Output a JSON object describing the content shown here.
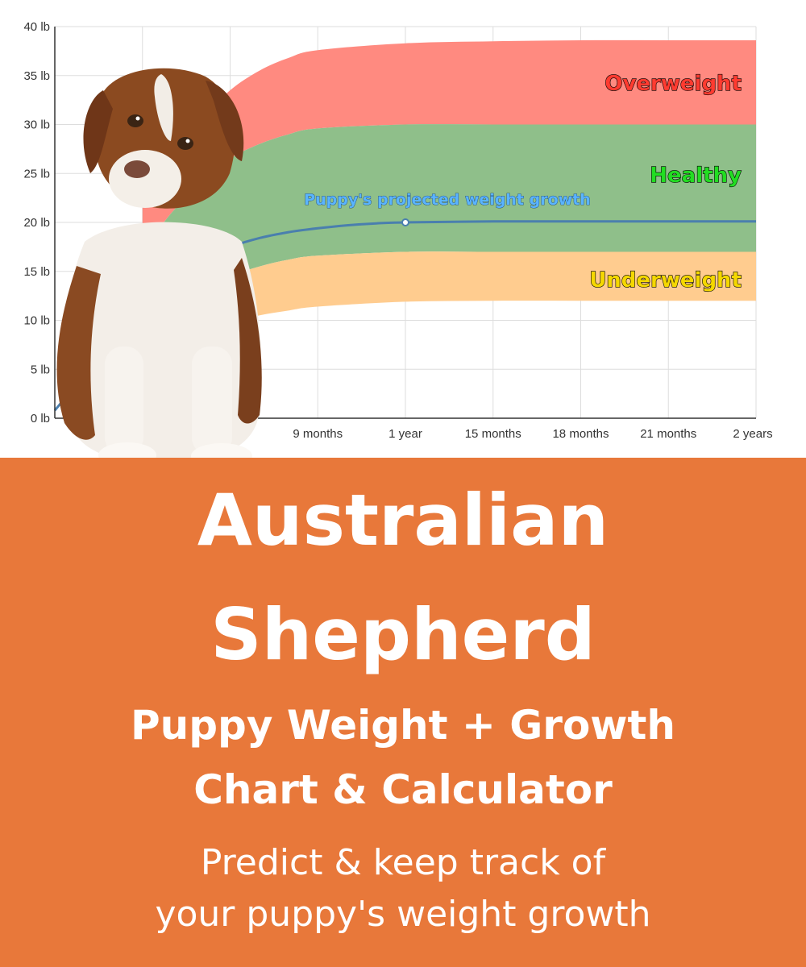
{
  "chart_data": {
    "type": "area",
    "y_unit": "lb",
    "ylim": [
      0,
      40
    ],
    "y_ticks": [
      "0 lb",
      "5 lb",
      "10 lb",
      "15 lb",
      "20 lb",
      "25 lb",
      "30 lb",
      "35 lb",
      "40 lb"
    ],
    "y_tick_values": [
      0,
      5,
      10,
      15,
      20,
      25,
      30,
      35,
      40
    ],
    "xlim_months": [
      0,
      24
    ],
    "x_tick_labels": [
      "9 months",
      "1 year",
      "15 months",
      "18 months",
      "21 months",
      "2 years"
    ],
    "x_tick_values_months": [
      9,
      12,
      15,
      18,
      21,
      24
    ],
    "grid": true,
    "bands": [
      {
        "name": "Overweight",
        "color": "#ff8a80",
        "label_color": "#ff3b30",
        "x_months": [
          3,
          4,
          5,
          6,
          7,
          8,
          9,
          12,
          15,
          18,
          21,
          24
        ],
        "lower": [
          17.0,
          21.0,
          24.0,
          26.5,
          28.0,
          29.0,
          29.6,
          30.0,
          30.0,
          30.0,
          30.0,
          30.0
        ],
        "upper": [
          22.0,
          27.0,
          30.5,
          33.5,
          35.5,
          36.8,
          37.6,
          38.3,
          38.5,
          38.6,
          38.6,
          38.6
        ]
      },
      {
        "name": "Healthy",
        "color": "#8fbf8a",
        "label_color": "#22dd22",
        "x_months": [
          3,
          4,
          5,
          6,
          7,
          8,
          9,
          12,
          15,
          18,
          21,
          24
        ],
        "lower": [
          9.0,
          11.5,
          13.0,
          14.5,
          15.5,
          16.2,
          16.6,
          17.0,
          17.0,
          17.0,
          17.0,
          17.0
        ],
        "upper": [
          17.0,
          21.0,
          24.0,
          26.5,
          28.0,
          29.0,
          29.6,
          30.0,
          30.0,
          30.0,
          30.0,
          30.0
        ]
      },
      {
        "name": "Underweight",
        "color": "#ffcc8f",
        "label_color": "#f5d800",
        "x_months": [
          3,
          4,
          5,
          6,
          7,
          8,
          9,
          12,
          15,
          18,
          21,
          24
        ],
        "lower": [
          6.0,
          7.5,
          8.8,
          9.8,
          10.5,
          11.0,
          11.4,
          11.9,
          12.0,
          12.0,
          12.0,
          12.0
        ],
        "upper": [
          9.0,
          11.5,
          13.0,
          14.5,
          15.5,
          16.2,
          16.6,
          17.0,
          17.0,
          17.0,
          17.0,
          17.0
        ]
      }
    ],
    "series": [
      {
        "name": "Puppy's projected weight growth",
        "color": "#4a7fae",
        "label_color": "#5ab4ff",
        "x_months": [
          0,
          3,
          4,
          5,
          6,
          7,
          8,
          9,
          10,
          11,
          12,
          15,
          18,
          21,
          24
        ],
        "values": [
          0.8,
          11.5,
          14.5,
          16.3,
          17.5,
          18.4,
          19.0,
          19.4,
          19.7,
          19.9,
          20.0,
          20.1,
          20.1,
          20.1,
          20.1
        ]
      }
    ],
    "marker_point": {
      "x_months": 12,
      "value": 20.0
    }
  },
  "banner": {
    "background_color": "#e8783a",
    "title_line1": "Australian",
    "title_line2": "Shepherd",
    "subtitle_line1": "Puppy Weight + Growth",
    "subtitle_line2": "Chart & Calculator",
    "tagline_line1": "Predict & keep track of",
    "tagline_line2": "your puppy's weight growth"
  },
  "photo": {
    "subject": "puppy-photo",
    "fur_main": "#8a4a22",
    "fur_light": "#f4f0ea"
  }
}
